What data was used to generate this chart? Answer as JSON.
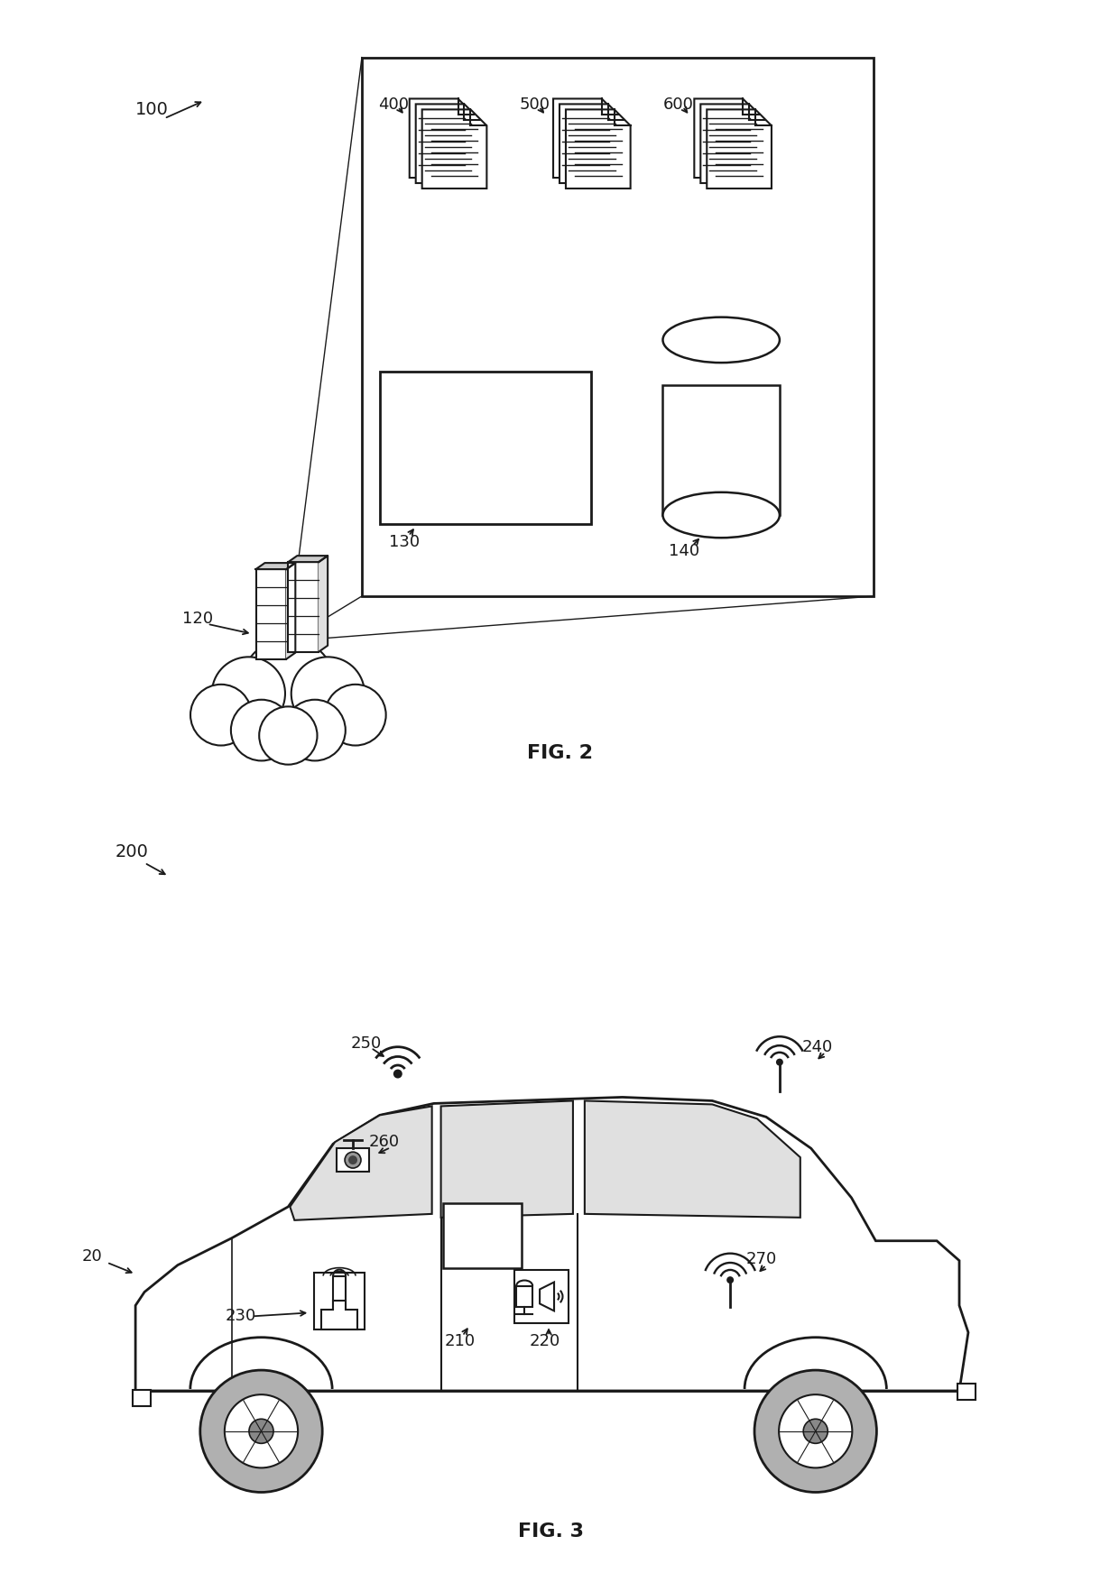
{
  "background_color": "#ffffff",
  "fig_width": 12.4,
  "fig_height": 17.44,
  "fig2_label": "FIG. 2",
  "fig3_label": "FIG. 3",
  "label_100": "100",
  "label_120": "120",
  "label_130": "130",
  "label_140": "140",
  "label_400": "400",
  "label_500": "500",
  "label_600": "600",
  "label_200": "200",
  "label_20": "20",
  "label_210": "210",
  "label_220": "220",
  "label_230": "230",
  "label_240": "240",
  "label_250": "250",
  "label_260": "260",
  "label_270": "270",
  "line_color": "#1a1a1a",
  "text_color": "#1a1a1a"
}
